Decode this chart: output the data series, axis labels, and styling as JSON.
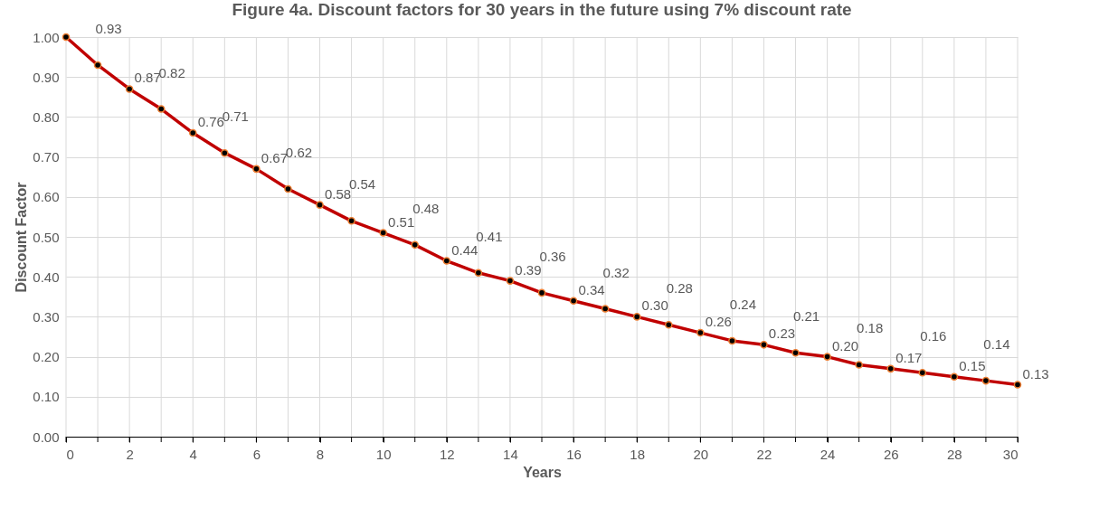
{
  "chart_data": {
    "type": "line",
    "title": "Figure 4a. Discount factors for 30 years in the future using 7% discount rate",
    "xlabel": "Years",
    "ylabel": "Discount Factor",
    "x": [
      0,
      1,
      2,
      3,
      4,
      5,
      6,
      7,
      8,
      9,
      10,
      11,
      12,
      13,
      14,
      15,
      16,
      17,
      18,
      19,
      20,
      21,
      22,
      23,
      24,
      25,
      26,
      27,
      28,
      29,
      30
    ],
    "series": [
      {
        "color": "#c00000",
        "values": [
          1.0,
          0.93,
          0.87,
          0.82,
          0.76,
          0.71,
          0.67,
          0.62,
          0.58,
          0.54,
          0.51,
          0.48,
          0.44,
          0.41,
          0.39,
          0.36,
          0.34,
          0.32,
          0.3,
          0.28,
          0.26,
          0.24,
          0.23,
          0.21,
          0.2,
          0.18,
          0.17,
          0.16,
          0.15,
          0.14,
          0.13
        ],
        "value_labels": [
          null,
          "0.93",
          "0.87",
          "0.82",
          "0.76",
          "0.71",
          "0.67",
          "0.62",
          "0.58",
          "0.54",
          "0.51",
          "0.48",
          "0.44",
          "0.41",
          "0.39",
          "0.36",
          "0.34",
          "0.32",
          "0.30",
          "0.28",
          "0.26",
          "0.24",
          "0.23",
          "0.21",
          "0.20",
          "0.18",
          "0.17",
          "0.16",
          "0.15",
          "0.14",
          "0.13"
        ]
      }
    ],
    "xlim": [
      0,
      30
    ],
    "xticks": [
      0,
      {
        "value": 1,
        "label": null
      },
      2,
      {
        "value": 3,
        "label": null
      },
      4,
      {
        "value": 5,
        "label": null
      },
      6,
      {
        "value": 7,
        "label": null
      },
      8,
      {
        "value": 9,
        "label": null
      },
      10,
      {
        "value": 11,
        "label": null
      },
      12,
      {
        "value": 13,
        "label": null
      },
      14,
      {
        "value": 15,
        "label": null
      },
      16,
      {
        "value": 17,
        "label": null
      },
      18,
      {
        "value": 19,
        "label": null
      },
      20,
      {
        "value": 21,
        "label": null
      },
      22,
      {
        "value": 23,
        "label": null
      },
      24,
      {
        "value": 25,
        "label": null
      },
      26,
      {
        "value": 27,
        "label": null
      },
      28,
      {
        "value": 29,
        "label": null
      },
      30
    ],
    "ylim": [
      0,
      1
    ],
    "yticks": [
      {
        "value": 0,
        "label": "0.00"
      },
      {
        "value": 0.1,
        "label": "0.10"
      },
      {
        "value": 0.2,
        "label": "0.20"
      },
      {
        "value": 0.3,
        "label": "0.30"
      },
      {
        "value": 0.4,
        "label": "0.40"
      },
      {
        "value": 0.5,
        "label": "0.50"
      },
      {
        "value": 0.6,
        "label": "0.60"
      },
      {
        "value": 0.7,
        "label": "0.70"
      },
      {
        "value": 0.8,
        "label": "0.80"
      },
      {
        "value": 0.9,
        "label": "0.90"
      },
      {
        "value": 1,
        "label": "1.00"
      }
    ],
    "grid": true,
    "marker": "circle",
    "line_style": "solid"
  }
}
